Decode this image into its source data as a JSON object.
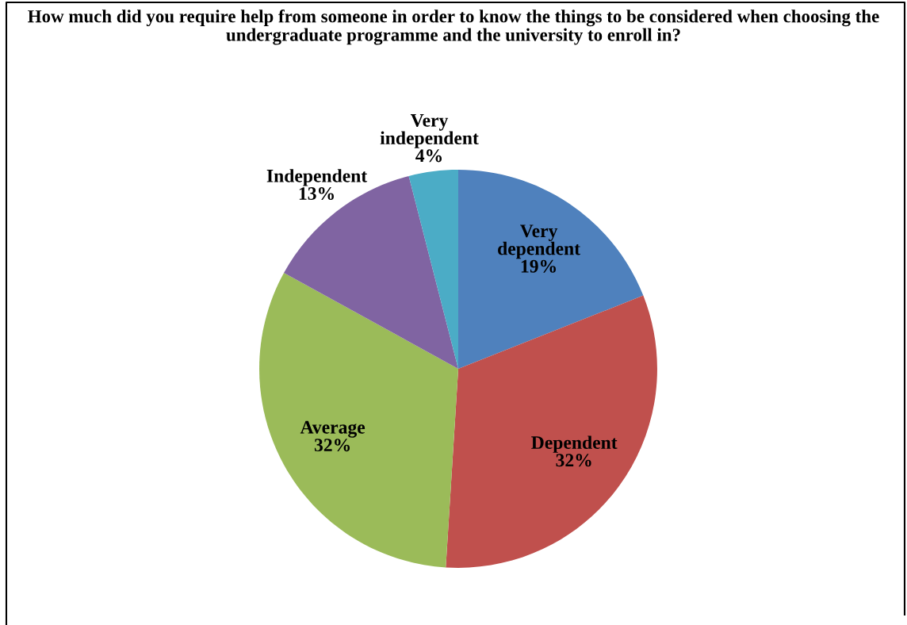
{
  "chart_data": {
    "type": "pie",
    "title": "How much did you require help from someone in order to know the things to be considered when choosing the undergraduate programme and the university to enroll in?",
    "categories": [
      "Very dependent",
      "Dependent",
      "Average",
      "Independent",
      "Very independent"
    ],
    "values": [
      19,
      32,
      32,
      13,
      4
    ],
    "value_labels": [
      "19%",
      "32%",
      "32%",
      "13%",
      "4%"
    ],
    "colors": [
      "#4f81bd",
      "#c0504d",
      "#9bbb59",
      "#8064a2",
      "#4bacc6"
    ],
    "legend": false
  }
}
